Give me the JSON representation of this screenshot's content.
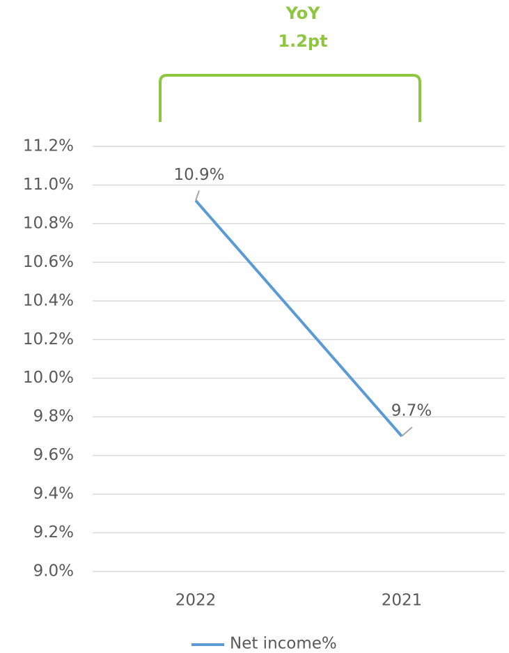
{
  "chart_data": {
    "type": "line",
    "annotations": [
      "YoY",
      "1.2pt"
    ],
    "categories": [
      "2022",
      "2021"
    ],
    "series": [
      {
        "name": "Net income%",
        "color": "#5b9bd5",
        "values": [
          10.92,
          9.7
        ],
        "value_labels": [
          "10.9%",
          "9.7%"
        ]
      }
    ],
    "ylim": [
      9.0,
      11.2
    ],
    "yticks": [
      {
        "value": 9.0,
        "label": "9.0%"
      },
      {
        "value": 9.2,
        "label": "9.2%"
      },
      {
        "value": 9.4,
        "label": "9.4%"
      },
      {
        "value": 9.6,
        "label": "9.6%"
      },
      {
        "value": 9.8,
        "label": "9.8%"
      },
      {
        "value": 10.0,
        "label": "10.0%"
      },
      {
        "value": 10.2,
        "label": "10.2%"
      },
      {
        "value": 10.4,
        "label": "10.4%"
      },
      {
        "value": 10.6,
        "label": "10.6%"
      },
      {
        "value": 10.8,
        "label": "10.8%"
      },
      {
        "value": 11.0,
        "label": "11.0%"
      },
      {
        "value": 11.2,
        "label": "11.2%"
      }
    ],
    "grid": true,
    "legend": "bottom"
  }
}
